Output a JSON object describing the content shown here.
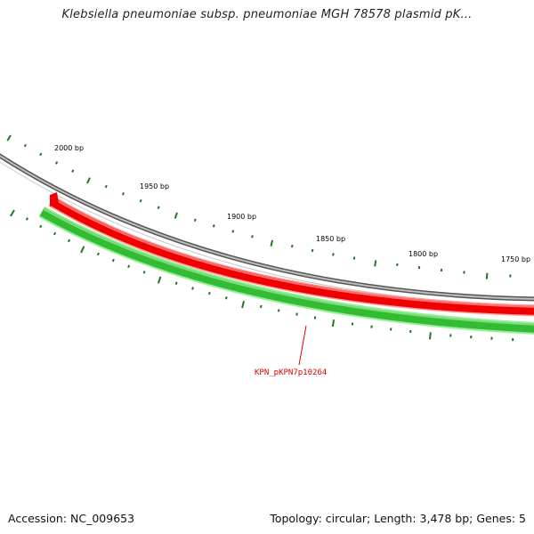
{
  "title": "Klebsiella pneumoniae subsp. pneumoniae MGH 78578 plasmid pK...",
  "footer": {
    "accession": "Accession: NC_009653",
    "summary": "Topology: circular; Length: 3,478 bp; Genes: 5"
  },
  "map": {
    "tick_labels": [
      "2000 bp",
      "1950 bp",
      "1900 bp",
      "1850 bp",
      "1800 bp",
      "1750 bp"
    ],
    "gene_label": "KPN_pKPN7p10264",
    "colors": {
      "backbone": "#888888",
      "forward_gene": "#ee0000",
      "reverse_gene": "#33bb33",
      "ticks": "#227722",
      "gene_label": "#dd0000"
    }
  }
}
